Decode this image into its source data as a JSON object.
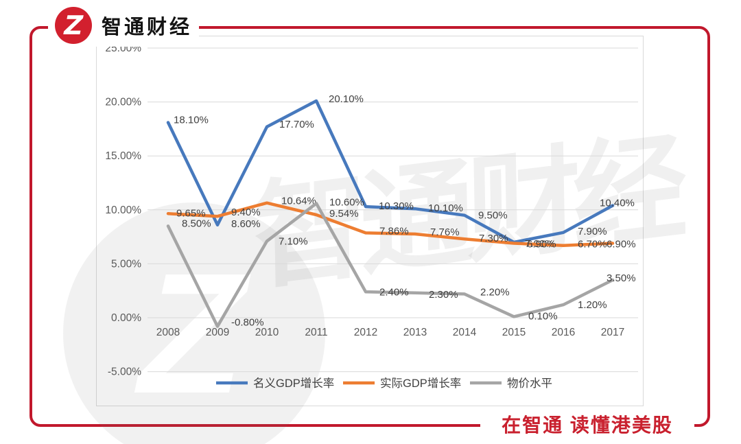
{
  "brand": {
    "logo_text": "智通财经",
    "logo_glyph": "Z",
    "slogan": "在智通  读懂港美股"
  },
  "watermark": {
    "text": "智通财经",
    "glyph": "Z"
  },
  "colors": {
    "frame_red": "#c1182c",
    "logo_red": "#d2202e",
    "slogan_red": "#c9202e",
    "line_blue": "#4779bd",
    "line_orange": "#ed7d31",
    "line_gray": "#a5a5a5",
    "gridline": "#d9d9d9",
    "axis_text": "#595959",
    "label_text": "#404040"
  },
  "chart_data": {
    "type": "line",
    "categories": [
      "2008",
      "2009",
      "2010",
      "2011",
      "2012",
      "2013",
      "2014",
      "2015",
      "2016",
      "2017"
    ],
    "series": [
      {
        "name": "名义GDP增长率",
        "color": "#4779bd",
        "values": [
          18.1,
          8.6,
          17.7,
          20.1,
          10.3,
          10.1,
          9.5,
          7.0,
          7.9,
          10.4
        ],
        "labels": [
          "18.10%",
          "8.60%",
          "17.70%",
          "20.10%",
          "10.30%",
          "10.10%",
          "9.50%",
          "7.00%",
          "7.90%",
          "10.40%"
        ]
      },
      {
        "name": "实际GDP增长率",
        "color": "#ed7d31",
        "values": [
          9.65,
          9.4,
          10.64,
          9.54,
          7.86,
          7.76,
          7.3,
          6.9,
          6.7,
          6.9
        ],
        "labels": [
          "9.65%",
          "9.40%",
          "10.64%",
          "9.54%",
          "7.86%",
          "7.76%",
          "7.30%",
          "6.90%",
          "6.70%",
          "6.90%"
        ]
      },
      {
        "name": "物价水平",
        "color": "#a5a5a5",
        "values": [
          8.5,
          -0.8,
          7.1,
          10.6,
          2.4,
          2.3,
          2.2,
          0.1,
          1.2,
          3.5
        ],
        "labels": [
          "8.50%",
          "-0.80%",
          "7.10%",
          "10.60%",
          "2.40%",
          "2.30%",
          "2.20%",
          "0.10%",
          "1.20%",
          "3.50%"
        ]
      }
    ],
    "y_ticks": [
      {
        "value": 25,
        "label": "25.00%"
      },
      {
        "value": 20,
        "label": "20.00%"
      },
      {
        "value": 15,
        "label": "15.00%"
      },
      {
        "value": 10,
        "label": "10.00%"
      },
      {
        "value": 5,
        "label": "5.00%"
      },
      {
        "value": 0,
        "label": "0.00%"
      },
      {
        "value": -5,
        "label": "-5.00%"
      }
    ],
    "ylim": [
      -5,
      25
    ],
    "grid": true,
    "legend_position": "bottom",
    "title": "",
    "xlabel": "",
    "ylabel": ""
  }
}
